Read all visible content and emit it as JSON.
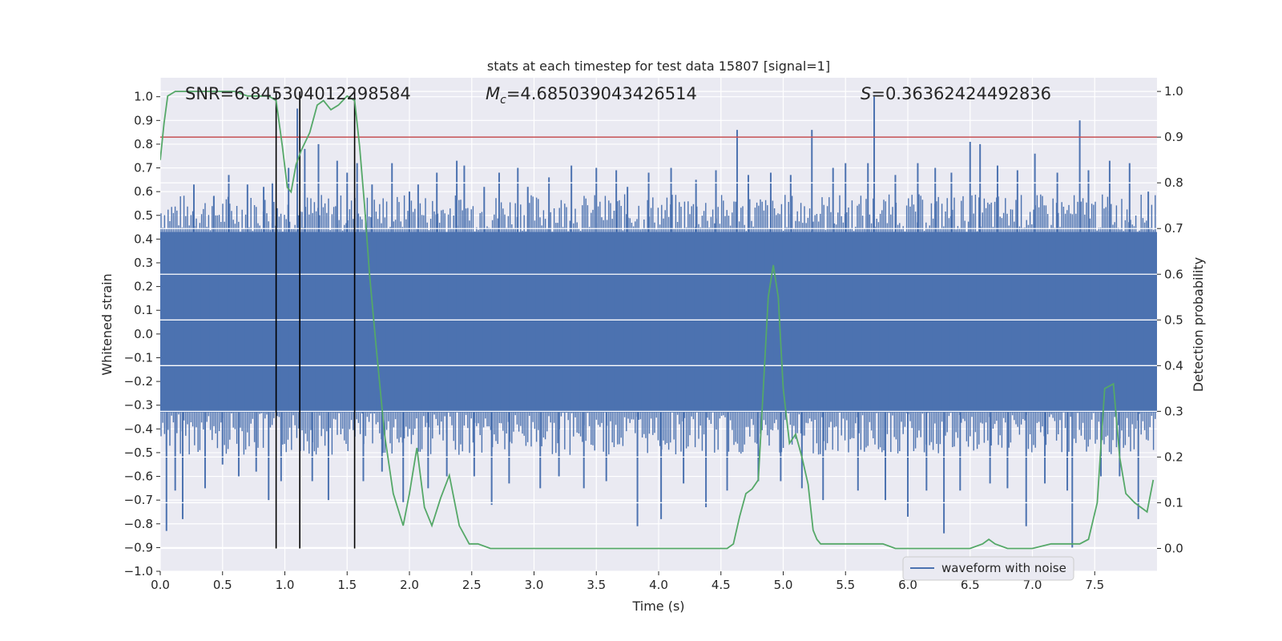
{
  "chart_data": {
    "type": "line",
    "title": "stats at each timestep for test data 15807 [signal=1]",
    "xlabel": "Time (s)",
    "ylabel": "Whitened strain",
    "ylabel_right": "Detection probability",
    "xlim": [
      0.0,
      8.0
    ],
    "ylim": [
      -1.0,
      1.08
    ],
    "ylim_right": [
      -0.05,
      1.03
    ],
    "x_ticks": [
      "0.0",
      "0.5",
      "1.0",
      "1.5",
      "2.0",
      "2.5",
      "3.0",
      "3.5",
      "4.0",
      "4.5",
      "5.0",
      "5.5",
      "6.0",
      "6.5",
      "7.0",
      "7.5"
    ],
    "y_ticks": [
      "−1.0",
      "−0.9",
      "−0.8",
      "−0.7",
      "−0.6",
      "−0.5",
      "−0.4",
      "−0.3",
      "−0.2",
      "−0.1",
      "0.0",
      "0.1",
      "0.2",
      "0.3",
      "0.4",
      "0.5",
      "0.6",
      "0.7",
      "0.8",
      "0.9",
      "1.0"
    ],
    "y_right_ticks": [
      "0.0",
      "0.1",
      "0.2",
      "0.3",
      "0.4",
      "0.5",
      "0.6",
      "0.7",
      "0.8",
      "0.9",
      "1.0"
    ],
    "annotations": {
      "snr": "SNR=6.845304012298584",
      "mc_symbol": "M",
      "mc_sub": "c",
      "mc_value": "=4.685039043426514",
      "s_symbol": "S",
      "s_value": "=0.36362424492836"
    },
    "legend": {
      "label": "waveform with noise",
      "position": "lower-right"
    },
    "threshold": {
      "value": 0.9,
      "axis": "right",
      "color": "#c44e52"
    },
    "vertical_markers": [
      0.93,
      1.12,
      1.56
    ],
    "waveform": {
      "name": "waveform with noise",
      "color": "#4c72b0",
      "dense_band": [
        -0.33,
        0.43
      ],
      "spikes": [
        [
          0.05,
          -0.83
        ],
        [
          0.12,
          -0.66
        ],
        [
          0.18,
          -0.78
        ],
        [
          0.27,
          0.63
        ],
        [
          0.36,
          -0.65
        ],
        [
          0.43,
          0.58
        ],
        [
          0.5,
          -0.55
        ],
        [
          0.55,
          0.67
        ],
        [
          0.63,
          -0.6
        ],
        [
          0.7,
          0.63
        ],
        [
          0.77,
          -0.58
        ],
        [
          0.83,
          0.62
        ],
        [
          0.87,
          -0.7
        ],
        [
          0.9,
          0.64
        ],
        [
          0.97,
          -0.62
        ],
        [
          1.03,
          0.7
        ],
        [
          1.1,
          0.95
        ],
        [
          1.16,
          0.78
        ],
        [
          1.22,
          -0.62
        ],
        [
          1.27,
          0.8
        ],
        [
          1.35,
          -0.7
        ],
        [
          1.42,
          0.73
        ],
        [
          1.5,
          0.68
        ],
        [
          1.58,
          0.72
        ],
        [
          1.63,
          -0.62
        ],
        [
          1.7,
          0.63
        ],
        [
          1.78,
          -0.58
        ],
        [
          1.86,
          0.72
        ],
        [
          1.95,
          -0.71
        ],
        [
          2.0,
          0.6
        ],
        [
          2.07,
          0.63
        ],
        [
          2.15,
          -0.65
        ],
        [
          2.22,
          0.68
        ],
        [
          2.3,
          -0.6
        ],
        [
          2.38,
          0.73
        ],
        [
          2.44,
          0.71
        ],
        [
          2.52,
          -0.6
        ],
        [
          2.6,
          0.62
        ],
        [
          2.66,
          -0.72
        ],
        [
          2.72,
          0.68
        ],
        [
          2.8,
          -0.63
        ],
        [
          2.87,
          0.7
        ],
        [
          2.95,
          0.62
        ],
        [
          3.05,
          -0.65
        ],
        [
          3.12,
          0.66
        ],
        [
          3.2,
          -0.6
        ],
        [
          3.3,
          0.71
        ],
        [
          3.4,
          -0.65
        ],
        [
          3.5,
          0.7
        ],
        [
          3.58,
          -0.62
        ],
        [
          3.66,
          0.69
        ],
        [
          3.75,
          0.62
        ],
        [
          3.83,
          -0.81
        ],
        [
          3.92,
          0.68
        ],
        [
          4.02,
          -0.78
        ],
        [
          4.1,
          0.7
        ],
        [
          4.2,
          -0.63
        ],
        [
          4.3,
          0.65
        ],
        [
          4.38,
          -0.73
        ],
        [
          4.46,
          0.69
        ],
        [
          4.55,
          -0.66
        ],
        [
          4.63,
          0.86
        ],
        [
          4.72,
          0.67
        ],
        [
          4.8,
          -0.62
        ],
        [
          4.9,
          0.68
        ],
        [
          4.98,
          -0.62
        ],
        [
          5.06,
          0.67
        ],
        [
          5.15,
          -0.65
        ],
        [
          5.23,
          0.86
        ],
        [
          5.32,
          -0.7
        ],
        [
          5.4,
          0.7
        ],
        [
          5.5,
          0.72
        ],
        [
          5.6,
          -0.66
        ],
        [
          5.68,
          0.72
        ],
        [
          5.73,
          1.0
        ],
        [
          5.82,
          -0.7
        ],
        [
          5.9,
          0.67
        ],
        [
          6.0,
          -0.77
        ],
        [
          6.08,
          0.72
        ],
        [
          6.15,
          -0.66
        ],
        [
          6.22,
          0.7
        ],
        [
          6.29,
          -0.84
        ],
        [
          6.35,
          0.68
        ],
        [
          6.42,
          -0.66
        ],
        [
          6.5,
          0.81
        ],
        [
          6.58,
          0.8
        ],
        [
          6.66,
          -0.63
        ],
        [
          6.72,
          0.71
        ],
        [
          6.8,
          -0.65
        ],
        [
          6.88,
          0.69
        ],
        [
          6.95,
          -0.81
        ],
        [
          7.02,
          0.76
        ],
        [
          7.1,
          -0.63
        ],
        [
          7.2,
          0.68
        ],
        [
          7.28,
          -0.66
        ],
        [
          7.32,
          -0.9
        ],
        [
          7.38,
          0.9
        ],
        [
          7.45,
          0.69
        ],
        [
          7.55,
          -0.6
        ],
        [
          7.62,
          0.73
        ],
        [
          7.7,
          -0.6
        ],
        [
          7.78,
          0.72
        ],
        [
          7.85,
          -0.78
        ],
        [
          7.93,
          0.6
        ]
      ]
    },
    "probability": {
      "name": "detection probability",
      "color": "#55a868",
      "x": [
        0.0,
        0.03,
        0.06,
        0.12,
        0.2,
        0.3,
        0.4,
        0.5,
        0.6,
        0.7,
        0.8,
        0.87,
        0.93,
        0.98,
        1.02,
        1.05,
        1.09,
        1.13,
        1.2,
        1.26,
        1.31,
        1.37,
        1.43,
        1.5,
        1.56,
        1.6,
        1.64,
        1.68,
        1.73,
        1.8,
        1.87,
        1.95,
        2.0,
        2.06,
        2.12,
        2.18,
        2.25,
        2.32,
        2.4,
        2.48,
        2.55,
        2.65,
        2.75,
        2.85,
        2.95,
        3.0,
        3.1,
        3.2,
        3.35,
        3.5,
        3.7,
        3.8,
        3.9,
        4.0,
        4.15,
        4.3,
        4.35,
        4.45,
        4.55,
        4.6,
        4.65,
        4.7,
        4.75,
        4.8,
        4.85,
        4.88,
        4.92,
        4.96,
        5.0,
        5.05,
        5.1,
        5.15,
        5.2,
        5.24,
        5.27,
        5.3,
        5.35,
        5.45,
        5.5,
        5.6,
        5.65,
        5.7,
        5.8,
        5.9,
        6.0,
        6.2,
        6.5,
        6.6,
        6.65,
        6.7,
        6.8,
        7.0,
        7.15,
        7.25,
        7.3,
        7.38,
        7.45,
        7.52,
        7.58,
        7.65,
        7.7,
        7.75,
        7.82,
        7.87,
        7.92,
        7.97
      ],
      "y": [
        0.85,
        0.93,
        0.99,
        1.0,
        1.0,
        1.0,
        1.0,
        1.0,
        1.0,
        0.99,
        0.99,
        0.99,
        0.98,
        0.88,
        0.79,
        0.78,
        0.84,
        0.87,
        0.91,
        0.97,
        0.98,
        0.96,
        0.97,
        0.99,
        0.98,
        0.88,
        0.75,
        0.6,
        0.45,
        0.25,
        0.12,
        0.05,
        0.12,
        0.22,
        0.09,
        0.05,
        0.11,
        0.16,
        0.05,
        0.01,
        0.01,
        0.0,
        0.0,
        0.0,
        0.0,
        0.0,
        0.0,
        0.0,
        0.0,
        0.0,
        0.0,
        0.0,
        0.0,
        0.0,
        0.0,
        0.0,
        0.0,
        0.0,
        0.0,
        0.01,
        0.07,
        0.12,
        0.13,
        0.15,
        0.4,
        0.55,
        0.62,
        0.55,
        0.35,
        0.23,
        0.25,
        0.2,
        0.14,
        0.04,
        0.02,
        0.01,
        0.01,
        0.01,
        0.01,
        0.01,
        0.01,
        0.01,
        0.01,
        0.0,
        0.0,
        0.0,
        0.0,
        0.01,
        0.02,
        0.01,
        0.0,
        0.0,
        0.01,
        0.01,
        0.01,
        0.01,
        0.02,
        0.1,
        0.35,
        0.36,
        0.2,
        0.12,
        0.1,
        0.09,
        0.08,
        0.15
      ]
    }
  }
}
